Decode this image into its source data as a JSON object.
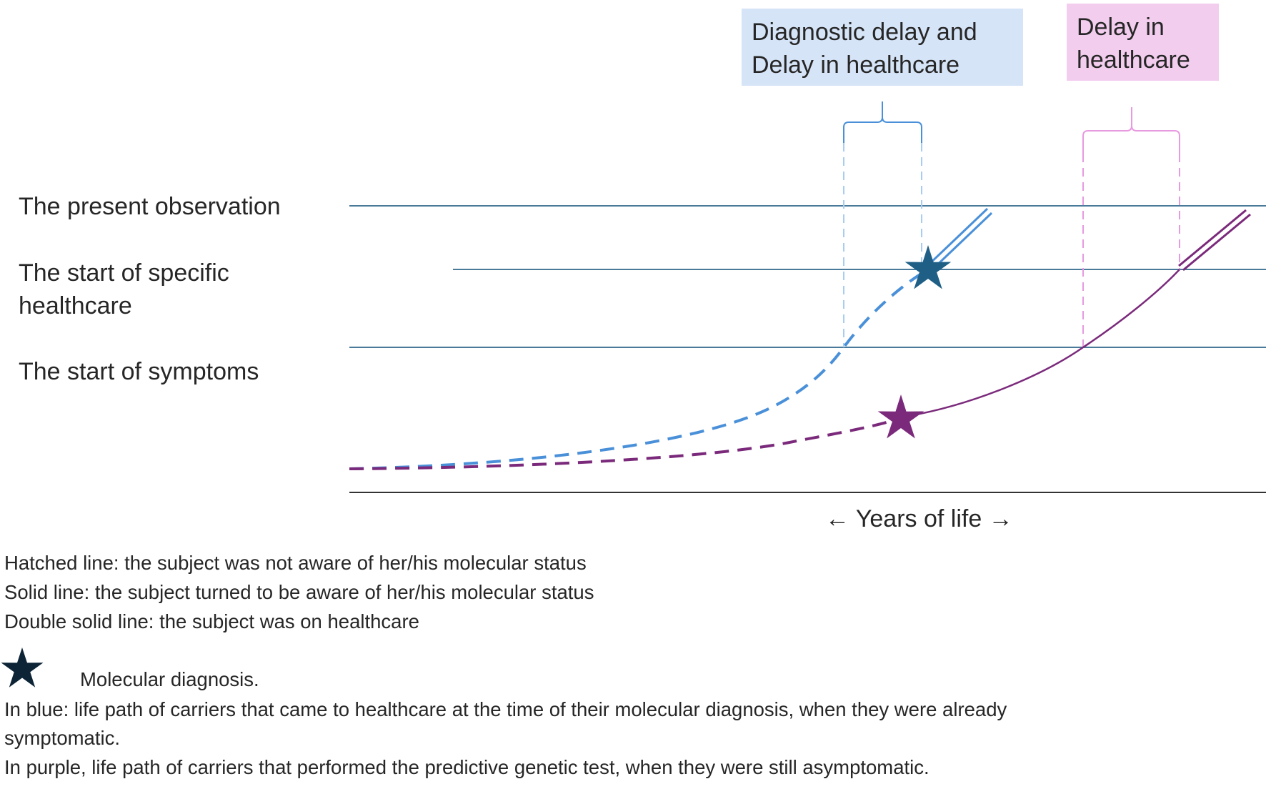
{
  "diagram": {
    "row_labels": {
      "present_observation": "The present observation",
      "start_specific_healthcare_line1": "The start of specific",
      "start_specific_healthcare_line2": "healthcare",
      "start_symptoms": "The start of symptoms"
    },
    "boxes": {
      "blue_line1": "Diagnostic delay and",
      "blue_line2": "Delay in healthcare",
      "purple_line1": "Delay in",
      "purple_line2": "healthcare"
    },
    "axis_label": "← Years of life →",
    "colors": {
      "blue_path": "#4a90d9",
      "blue_star": "#1f5f86",
      "purple_path": "#7b2a7b",
      "level_line": "#4a7a99",
      "blue_box_bg": "#d6e4f7",
      "purple_box_bg": "#f2cdee",
      "pink_dash": "#e79ae0",
      "light_blue_dash": "#a9cdf0"
    }
  },
  "legend": {
    "hatched": "Hatched line: the subject was not aware of her/his molecular status",
    "solid": "Solid line: the subject turned to be aware of her/his molecular status",
    "double": "Double solid line: the subject was on healthcare",
    "star_label": "Molecular diagnosis.",
    "star_icon": "star-icon",
    "blue_line1": "In blue: life path of carriers that came to healthcare at the time of their molecular diagnosis, when they were already",
    "blue_line2": "symptomatic.",
    "purple": "In purple, life path of carriers that performed the predictive genetic test, when they were still asymptomatic."
  }
}
